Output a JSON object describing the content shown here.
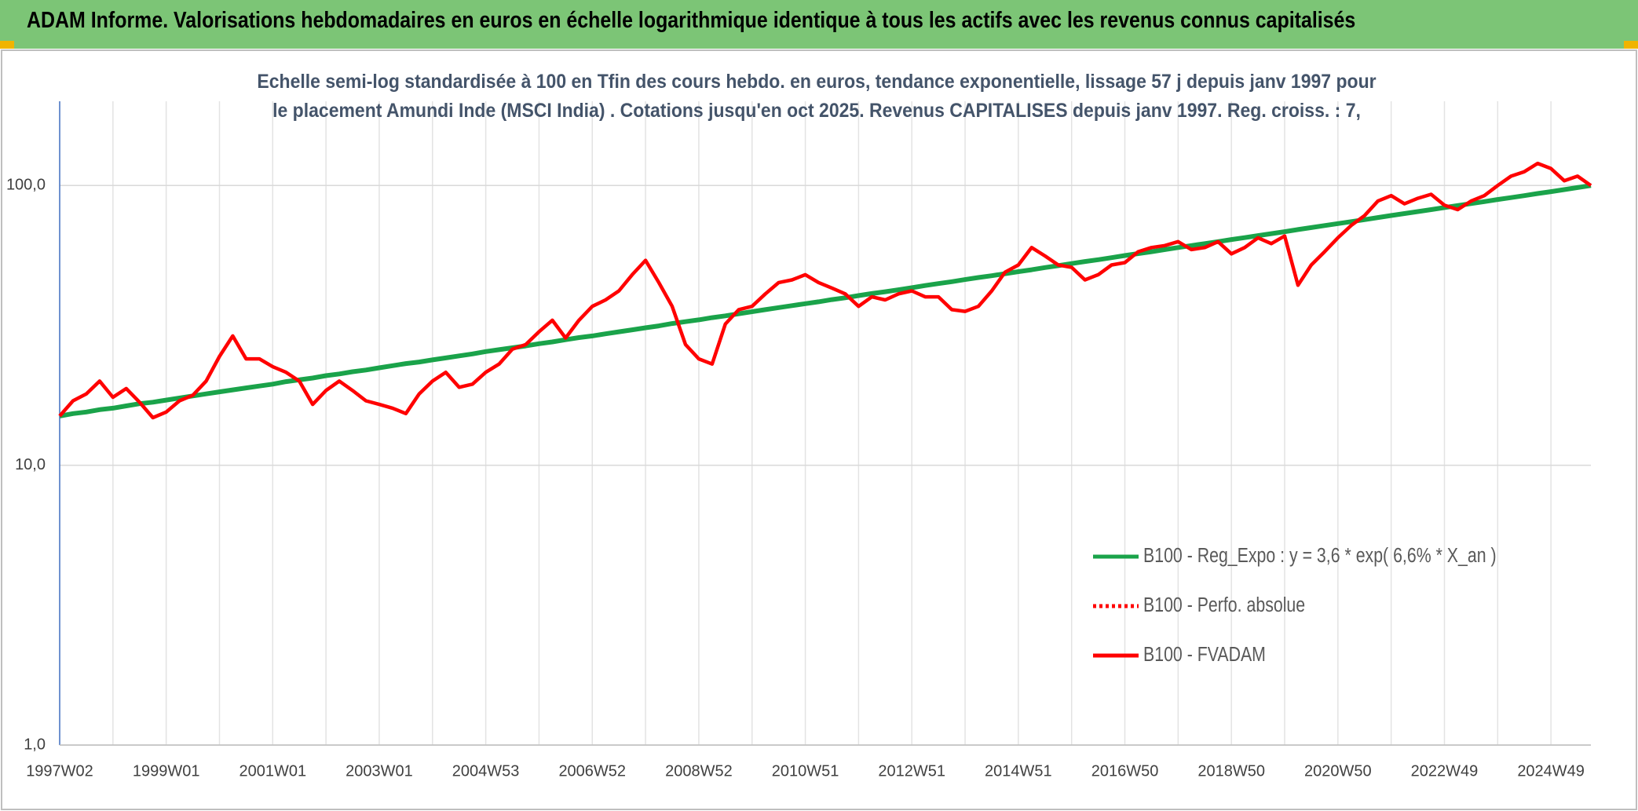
{
  "header": {
    "title": "ADAM Informe. Valorisations hebdomadaires en euros en échelle logarithmique identique à tous les actifs avec les revenus connus capitalisés"
  },
  "chart_data": {
    "type": "line",
    "title": "Echelle semi-log standardisée à 100 en Tfin des cours hebdo. en euros, tendance exponentielle, lissage 57 j depuis janv 1997 pour le placement Amundi Inde (MSCI India) . Cotations jusqu'en oct 2025. Revenus CAPITALISES depuis janv 1997. Reg. croiss. : 7,",
    "log_scale": true,
    "grid": true,
    "legend": "right",
    "ylim": [
      1,
      200
    ],
    "yticks": [
      {
        "value": 1,
        "label": "1,0"
      },
      {
        "value": 10,
        "label": "10,0"
      },
      {
        "value": 100,
        "label": "100,0"
      }
    ],
    "categories": [
      "1997W02",
      null,
      null,
      null,
      null,
      null,
      null,
      null,
      "1999W01",
      null,
      null,
      null,
      null,
      null,
      null,
      null,
      "2001W01",
      null,
      null,
      null,
      null,
      null,
      null,
      null,
      "2003W01",
      null,
      null,
      null,
      null,
      null,
      null,
      null,
      "2004W53",
      null,
      null,
      null,
      null,
      null,
      null,
      null,
      "2006W52",
      null,
      null,
      null,
      null,
      null,
      null,
      null,
      "2008W52",
      null,
      null,
      null,
      null,
      null,
      null,
      null,
      "2010W51",
      null,
      null,
      null,
      null,
      null,
      null,
      null,
      "2012W51",
      null,
      null,
      null,
      null,
      null,
      null,
      null,
      "2014W51",
      null,
      null,
      null,
      null,
      null,
      null,
      null,
      "2016W50",
      null,
      null,
      null,
      null,
      null,
      null,
      null,
      "2018W50",
      null,
      null,
      null,
      null,
      null,
      null,
      null,
      "2020W50",
      null,
      null,
      null,
      null,
      null,
      null,
      null,
      "2022W49",
      null,
      null,
      null,
      null,
      null,
      null,
      null,
      "2024W49",
      null,
      null,
      null
    ],
    "series": [
      {
        "name": "B100 - Reg_Expo : y = 3,6 * exp( 6,6% *  X_an )",
        "color": "#1aa34a",
        "width": 6,
        "values": [
          15.0,
          15.3,
          15.5,
          15.8,
          16.0,
          16.3,
          16.6,
          16.8,
          17.1,
          17.4,
          17.7,
          18.0,
          18.3,
          18.6,
          18.9,
          19.2,
          19.5,
          19.9,
          20.2,
          20.5,
          20.9,
          21.2,
          21.6,
          21.9,
          22.3,
          22.7,
          23.1,
          23.4,
          23.8,
          24.2,
          24.6,
          25.0,
          25.5,
          25.9,
          26.3,
          26.7,
          27.2,
          27.6,
          28.1,
          28.6,
          29.0,
          29.5,
          30.0,
          30.5,
          31.0,
          31.5,
          32.1,
          32.6,
          33.1,
          33.7,
          34.2,
          34.8,
          35.4,
          36.0,
          36.6,
          37.2,
          37.8,
          38.4,
          39.1,
          39.7,
          40.4,
          41.1,
          41.7,
          42.4,
          43.1,
          43.9,
          44.6,
          45.3,
          46.1,
          46.9,
          47.6,
          48.4,
          49.2,
          50.0,
          50.9,
          51.7,
          52.6,
          53.5,
          54.3,
          55.2,
          56.2,
          57.1,
          58.0,
          59.0,
          60.0,
          61.0,
          62.0,
          63.0,
          64.1,
          65.1,
          66.2,
          67.3,
          68.4,
          69.6,
          70.7,
          71.9,
          73.1,
          74.3,
          75.5,
          76.8,
          78.1,
          79.4,
          80.7,
          82.0,
          83.4,
          84.8,
          86.2,
          87.6,
          89.1,
          90.5,
          92.0,
          93.6,
          95.1,
          96.7,
          98.3,
          100.0
        ]
      },
      {
        "name": "B100 - Perfo. absolue",
        "color": "#ff0000",
        "dash": "dotted"
      },
      {
        "name": "B100 - FVADAM",
        "color": "#ff0000",
        "width": 4.5,
        "values": [
          15,
          17,
          18,
          20,
          17.5,
          18.8,
          16.8,
          14.8,
          15.5,
          17,
          17.8,
          20,
          24.5,
          29,
          24,
          24,
          22.5,
          21.5,
          20,
          16.5,
          18.5,
          20,
          18.5,
          17,
          16.5,
          16,
          15.3,
          18,
          20,
          21.5,
          19,
          19.5,
          21.5,
          23,
          26,
          27,
          30,
          33,
          28.5,
          33,
          37,
          39,
          42,
          48,
          54,
          45,
          37,
          27,
          24,
          23,
          32,
          36,
          37,
          41,
          45,
          46,
          48,
          45,
          43,
          41,
          37,
          40,
          39,
          41,
          42,
          40,
          40,
          36,
          35.5,
          37,
          42,
          49,
          52,
          60,
          56,
          52,
          51,
          46,
          48,
          52,
          53,
          58,
          60,
          61,
          63,
          59,
          60,
          63,
          57,
          60,
          65,
          62,
          66,
          44,
          52,
          58,
          65,
          72,
          78,
          88,
          92,
          86,
          90,
          93,
          85,
          82,
          88,
          92,
          100,
          108,
          112,
          120,
          115,
          104,
          108,
          100
        ]
      }
    ]
  }
}
